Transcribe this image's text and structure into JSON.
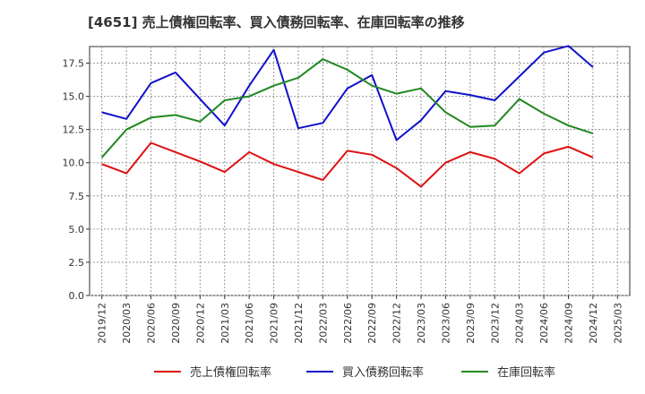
{
  "title": "[4651]  売上債権回転率、買入債務回転率、在庫回転率の推移",
  "chart_data": {
    "type": "line",
    "title": "[4651]  売上債権回転率、買入債務回転率、在庫回転率の推移",
    "xlabel": "",
    "ylabel": "",
    "ylim": [
      0,
      18.75
    ],
    "yticks": [
      0.0,
      2.5,
      5.0,
      7.5,
      10.0,
      12.5,
      15.0,
      17.5
    ],
    "xtick_labels": [
      "2019/12",
      "2020/03",
      "2020/06",
      "2020/09",
      "2020/12",
      "2021/03",
      "2021/06",
      "2021/09",
      "2021/12",
      "2022/03",
      "2022/06",
      "2022/09",
      "2022/12",
      "2023/03",
      "2023/06",
      "2023/09",
      "2023/12",
      "2024/03",
      "2024/06",
      "2024/09",
      "2024/12",
      "2025/03"
    ],
    "x": [
      "2019/12",
      "2020/03",
      "2020/06",
      "2020/09",
      "2020/12",
      "2021/03",
      "2021/06",
      "2021/09",
      "2021/12",
      "2022/03",
      "2022/06",
      "2022/09",
      "2022/12",
      "2023/03",
      "2023/06",
      "2023/09",
      "2023/12",
      "2024/03",
      "2024/06",
      "2024/09",
      "2024/12"
    ],
    "grid": true,
    "legend_position": "bottom",
    "series": [
      {
        "name": "売上債権回転率",
        "color": "#dd1111",
        "values": [
          9.9,
          9.2,
          11.5,
          10.8,
          10.1,
          9.3,
          10.8,
          9.9,
          9.3,
          8.7,
          10.9,
          10.6,
          9.6,
          8.2,
          10.0,
          10.8,
          10.3,
          9.2,
          10.7,
          11.2,
          10.4
        ]
      },
      {
        "name": "買入債務回転率",
        "color": "#1111cc",
        "values": [
          13.8,
          13.3,
          16.0,
          16.8,
          14.8,
          12.8,
          15.8,
          18.5,
          12.6,
          13.0,
          15.6,
          16.6,
          11.7,
          13.2,
          15.4,
          15.1,
          14.7,
          16.5,
          18.3,
          18.8,
          17.2
        ]
      },
      {
        "name": "在庫回転率",
        "color": "#228822",
        "values": [
          10.4,
          12.5,
          13.4,
          13.6,
          13.1,
          14.7,
          15.0,
          15.8,
          16.4,
          17.8,
          17.0,
          15.8,
          15.2,
          15.6,
          13.8,
          12.7,
          12.8,
          14.8,
          13.7,
          12.8,
          12.2
        ]
      }
    ]
  }
}
